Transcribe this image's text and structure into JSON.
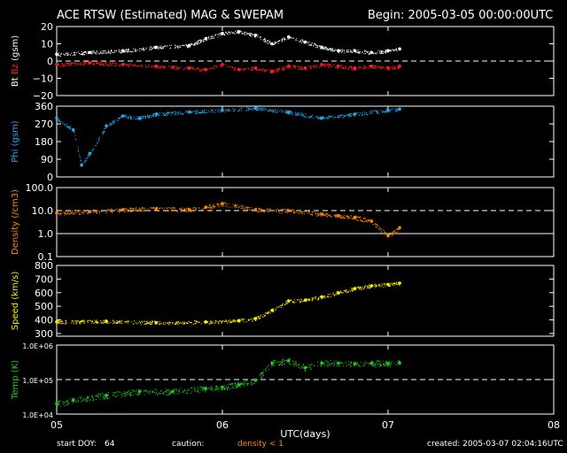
{
  "header": {
    "title": "ACE RTSW (Estimated) MAG & SWEPAM",
    "begin": "Begin: 2005-03-05 00:00:00UTC"
  },
  "footer": {
    "start_doy_label": "start DOY:",
    "start_doy_value": "64",
    "caution_label": "caution:",
    "caution_value": "density < 1",
    "created": "created: 2005-03-07 02:04:16UTC"
  },
  "colors": {
    "bt": "#ffffff",
    "bz": "#ff2020",
    "phi": "#22aaee",
    "density": "#ff8800",
    "speed": "#ffee00",
    "temp": "#22cc22",
    "axis": "#ffffff",
    "caution": "#ff8800"
  },
  "chart_data": [
    {
      "type": "scatter",
      "panel": "bt-bz",
      "ylabel_parts": [
        "Bt",
        "Bz",
        "(gsm)"
      ],
      "ylim": [
        -20,
        20
      ],
      "yticks": [
        -20,
        -10,
        0,
        10,
        20
      ],
      "ytick_labels": [
        "−20",
        "−10",
        "0",
        "10",
        "20"
      ],
      "dashed_ref": [
        0
      ],
      "series": [
        {
          "name": "Bt",
          "x": [
            0,
            0.2,
            0.4,
            0.6,
            0.8,
            0.9,
            1.0,
            1.1,
            1.2,
            1.3,
            1.4,
            1.5,
            1.6,
            1.7,
            1.8,
            1.9,
            2.0,
            2.07
          ],
          "y": [
            4,
            5,
            6,
            8,
            9,
            13,
            16,
            17,
            15,
            10,
            14,
            11,
            8,
            6,
            6,
            5,
            6,
            7
          ]
        },
        {
          "name": "Bz",
          "x": [
            0,
            0.2,
            0.4,
            0.6,
            0.8,
            0.9,
            1.0,
            1.1,
            1.2,
            1.3,
            1.4,
            1.5,
            1.6,
            1.7,
            1.8,
            1.9,
            2.0,
            2.07
          ],
          "y": [
            -2,
            -1,
            -2,
            -3,
            -4,
            -5,
            -2,
            -5,
            -4,
            -6,
            -3,
            -4,
            -2,
            -3,
            -4,
            -3,
            -4,
            -3
          ]
        }
      ]
    },
    {
      "type": "scatter",
      "panel": "phi",
      "ylabel_parts": [
        "Phi (gsm)"
      ],
      "ylim": [
        0,
        360
      ],
      "yticks": [
        0,
        90,
        180,
        270,
        360
      ],
      "ytick_labels": [
        "0",
        "90",
        "180",
        "270",
        "360"
      ],
      "series": [
        {
          "name": "Phi",
          "x": [
            0,
            0.1,
            0.15,
            0.2,
            0.3,
            0.4,
            0.5,
            0.6,
            0.8,
            1.0,
            1.2,
            1.4,
            1.6,
            1.8,
            2.0,
            2.07
          ],
          "y": [
            300,
            240,
            60,
            120,
            260,
            310,
            300,
            320,
            330,
            340,
            350,
            330,
            300,
            320,
            340,
            345
          ]
        }
      ]
    },
    {
      "type": "scatter",
      "panel": "density",
      "ylabel_parts": [
        "Density (/cm3)"
      ],
      "yscale": "log",
      "ylim": [
        0.1,
        100
      ],
      "yticks": [
        0.1,
        1.0,
        10.0,
        100.0
      ],
      "ytick_labels": [
        "0.1",
        "1.0",
        "10.0",
        "100.0"
      ],
      "dashed_ref": [
        10
      ],
      "solid_ref": [
        1
      ],
      "series": [
        {
          "name": "Density",
          "x": [
            0,
            0.2,
            0.4,
            0.6,
            0.8,
            0.9,
            1.0,
            1.2,
            1.4,
            1.6,
            1.7,
            1.8,
            1.9,
            2.0,
            2.07
          ],
          "y": [
            8,
            9,
            11,
            12,
            11,
            14,
            20,
            11,
            10,
            7,
            6,
            5,
            3.5,
            0.8,
            1.8
          ]
        }
      ]
    },
    {
      "type": "scatter",
      "panel": "speed",
      "ylabel_parts": [
        "Speed (km/s)"
      ],
      "ylim": [
        280,
        800
      ],
      "yticks": [
        300,
        400,
        500,
        600,
        700,
        800
      ],
      "ytick_labels": [
        "300",
        "400",
        "500",
        "600",
        "700",
        "800"
      ],
      "series": [
        {
          "name": "Speed",
          "x": [
            0,
            0.3,
            0.6,
            0.9,
            1.1,
            1.2,
            1.3,
            1.4,
            1.5,
            1.6,
            1.7,
            1.8,
            1.9,
            2.0,
            2.07
          ],
          "y": [
            385,
            390,
            380,
            385,
            395,
            410,
            470,
            540,
            545,
            570,
            600,
            630,
            650,
            660,
            670
          ]
        }
      ]
    },
    {
      "type": "scatter",
      "panel": "temp",
      "ylabel_parts": [
        "Temp (K)"
      ],
      "yscale": "log",
      "ylim": [
        10000,
        1000000
      ],
      "yticks": [
        10000,
        100000,
        1000000
      ],
      "ytick_labels": [
        "1.0E+04",
        "1.0E+05",
        "1.0E+06"
      ],
      "dashed_ref": [
        100000
      ],
      "xlabel": "UTC(days)",
      "xlim": [
        0,
        3
      ],
      "xticks": [
        0,
        1,
        2,
        3
      ],
      "xtick_labels": [
        "05",
        "06",
        "07",
        "08"
      ],
      "series": [
        {
          "name": "Temp",
          "x": [
            0,
            0.1,
            0.3,
            0.5,
            0.7,
            0.9,
            1.0,
            1.1,
            1.2,
            1.3,
            1.4,
            1.5,
            1.6,
            1.7,
            1.8,
            1.9,
            2.0,
            2.07
          ],
          "y": [
            20000,
            25000,
            35000,
            45000,
            45000,
            55000,
            60000,
            70000,
            95000,
            300000,
            350000,
            220000,
            300000,
            300000,
            280000,
            300000,
            290000,
            300000
          ]
        }
      ]
    }
  ]
}
